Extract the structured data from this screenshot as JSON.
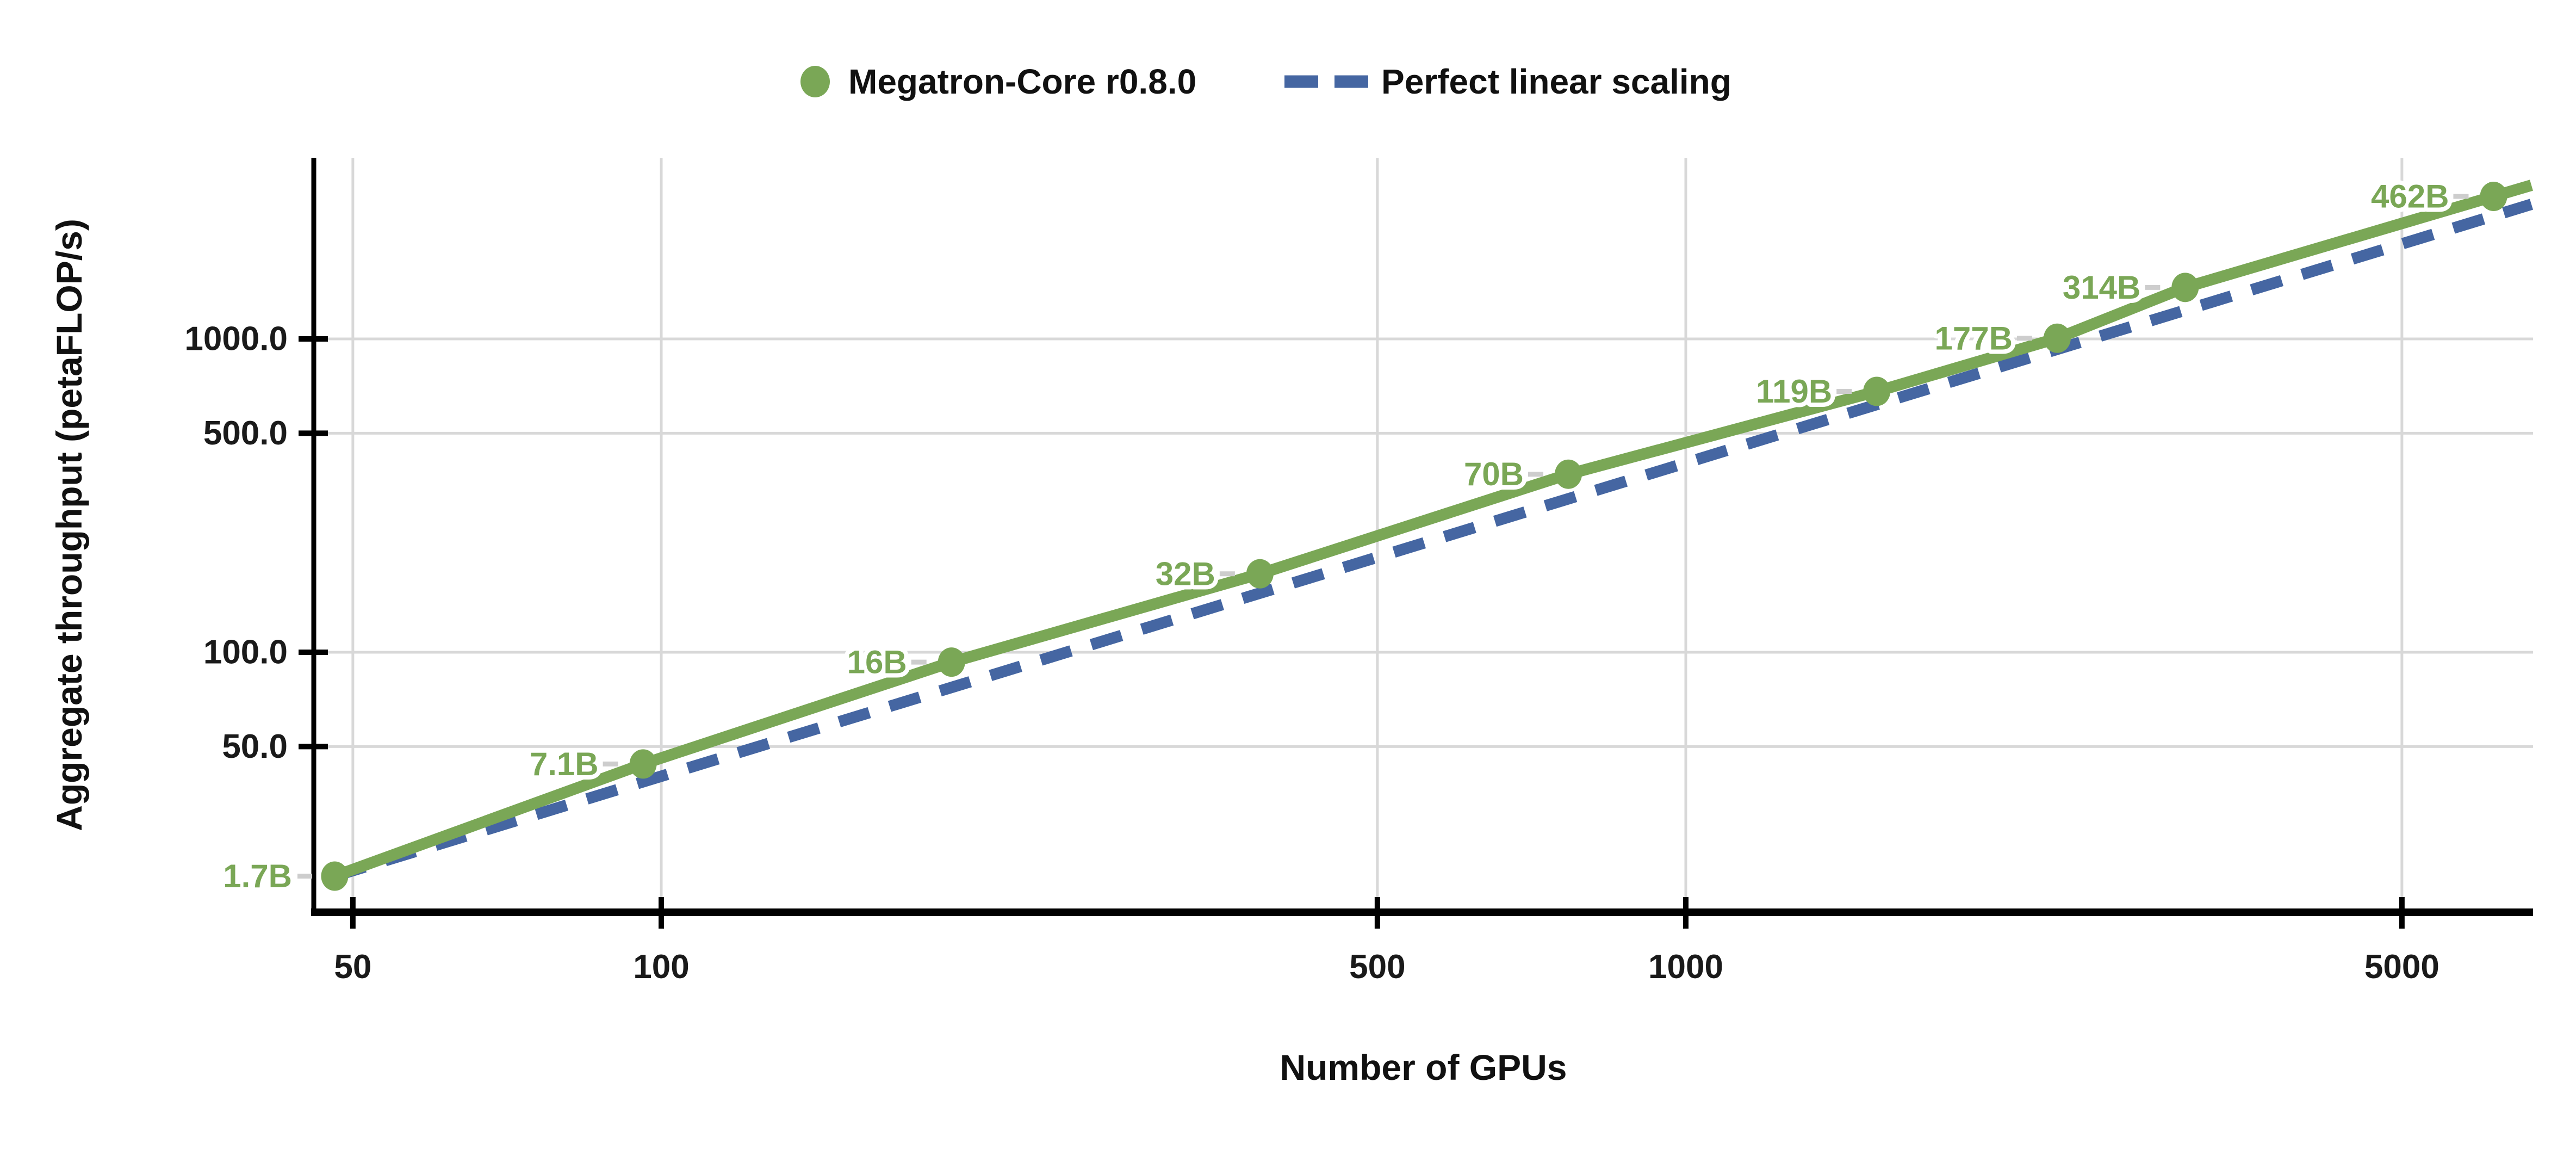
{
  "page": {
    "background": "#ffffff"
  },
  "legend": {
    "items": [
      {
        "label": "Megatron-Core r0.8.0",
        "marker": "dot",
        "color": "#7AA756"
      },
      {
        "label": "Perfect linear scaling",
        "marker": "dashes",
        "color": "#4566A2"
      }
    ]
  },
  "axes": {
    "x": {
      "title": "Number of GPUs",
      "scale": "log",
      "tick_labels": [
        "50",
        "100",
        "500",
        "1000",
        "5000"
      ],
      "tick_values": [
        50,
        100,
        500,
        1000,
        5000
      ]
    },
    "y": {
      "title": "Aggregate throughput (petaFLOP/s)",
      "scale": "log",
      "tick_labels": [
        "1000.0",
        "500.0",
        "100.0",
        "50.0"
      ],
      "tick_values": [
        1000,
        500,
        100,
        50
      ],
      "extra_tick": {
        "label": "1.7B",
        "value": 19.3,
        "color": "#7AA756"
      }
    }
  },
  "chart_data": {
    "type": "line",
    "x_scale": "log",
    "y_scale": "log",
    "title": "",
    "xlabel": "Number of GPUs",
    "ylabel": "Aggregate throughput (petaFLOP/s)",
    "xlim": [
      44,
      6900
    ],
    "ylim": [
      15,
      3500
    ],
    "grid": true,
    "legend_position": "top-center",
    "x": [
      48,
      96,
      192,
      384,
      768,
      1536,
      2304,
      3072,
      6144
    ],
    "series": [
      {
        "name": "Megatron-Core r0.8.0",
        "color": "#7AA756",
        "style": "solid",
        "markers": true,
        "values": [
          19.3,
          44,
          93,
          178,
          370,
          680,
          1005,
          1460,
          2850
        ],
        "point_labels": [
          "1.7B",
          "7.1B",
          "16B",
          "32B",
          "70B",
          "119B",
          "177B",
          "314B",
          "462B"
        ]
      },
      {
        "name": "Perfect linear scaling",
        "color": "#4566A2",
        "style": "dashed",
        "markers": false,
        "values": [
          19.3,
          38.6,
          77.2,
          154.4,
          308.8,
          617.6,
          926.4,
          1235.2,
          2470.4
        ],
        "point_labels": []
      }
    ]
  },
  "colors": {
    "grid": "#D8D8D8",
    "axis": "#000000",
    "tick_text": "#1A1A1A",
    "leader_dash": "#CDCDCD",
    "background": "#FFFFFF"
  }
}
